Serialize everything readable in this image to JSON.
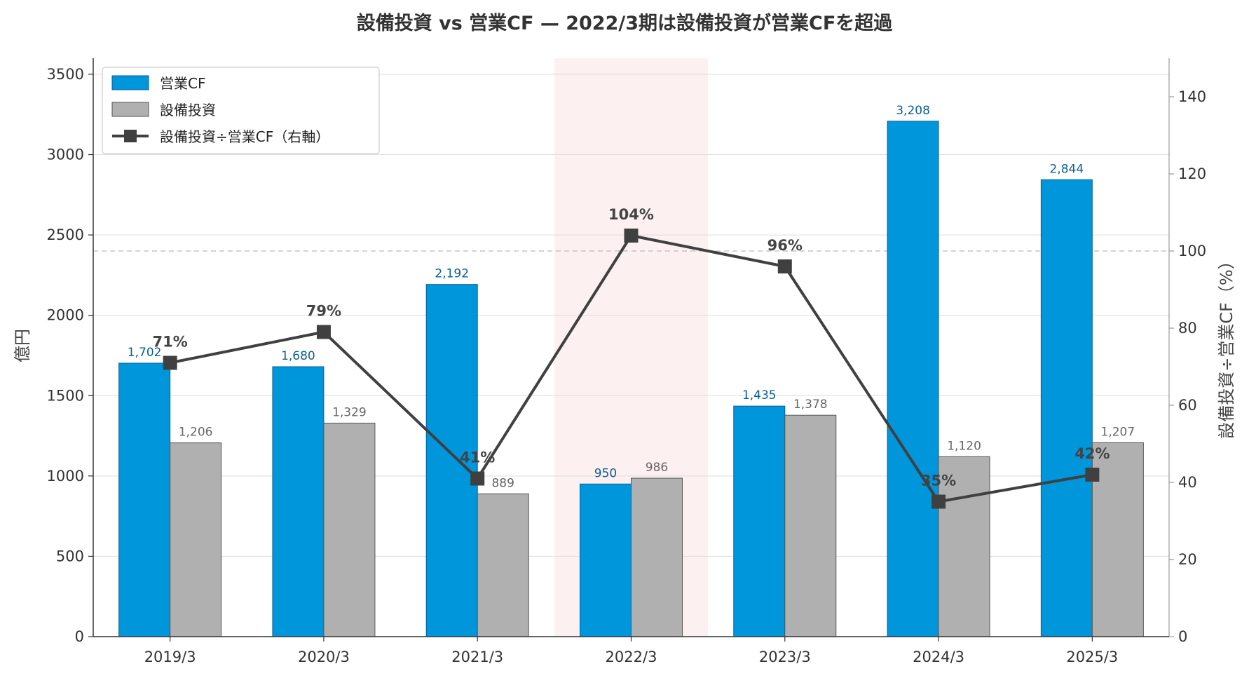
{
  "chart_data": {
    "type": "bar",
    "title": "設備投資 vs 営業CF — 2022/3期は設備投資が営業CFを超過",
    "categories": [
      "2019/3",
      "2020/3",
      "2021/3",
      "2022/3",
      "2023/3",
      "2024/3",
      "2025/3"
    ],
    "series": [
      {
        "name": "営業CF",
        "type": "bar",
        "color": "#0096dc",
        "values": [
          1702,
          1680,
          2192,
          950,
          1435,
          3208,
          2844
        ],
        "labels": [
          "1,702",
          "1,680",
          "2,192",
          "950",
          "1,435",
          "3,208",
          "2,844"
        ]
      },
      {
        "name": "設備投資",
        "type": "bar",
        "color": "#b0b0b0",
        "values": [
          1206,
          1329,
          889,
          986,
          1378,
          1120,
          1207
        ],
        "labels": [
          "1,206",
          "1,329",
          "889",
          "986",
          "1,378",
          "1,120",
          "1,207"
        ]
      },
      {
        "name": "設備投資÷営業CF（右軸）",
        "type": "line",
        "axis": "right",
        "color": "#404040",
        "values": [
          71,
          79,
          41,
          104,
          96,
          35,
          42
        ],
        "labels": [
          "71%",
          "79%",
          "41%",
          "104%",
          "96%",
          "35%",
          "42%"
        ]
      }
    ],
    "ylabel": "億円",
    "ylabel_right": "設備投資÷営業CF（%）",
    "ylim": [
      0,
      3600
    ],
    "ylim_right": [
      0,
      150
    ],
    "yticks": [
      0,
      500,
      1000,
      1500,
      2000,
      2500,
      3000,
      3500
    ],
    "yticks_right": [
      0,
      20,
      40,
      60,
      80,
      100,
      120,
      140
    ],
    "reference_line_right": 100,
    "highlight_category": "2022/3",
    "grid": true,
    "legend_position": "top-left"
  },
  "colors": {
    "highlight": "#fdf0f0",
    "grid": "#dddddd",
    "reference": "#bbbbbb"
  }
}
